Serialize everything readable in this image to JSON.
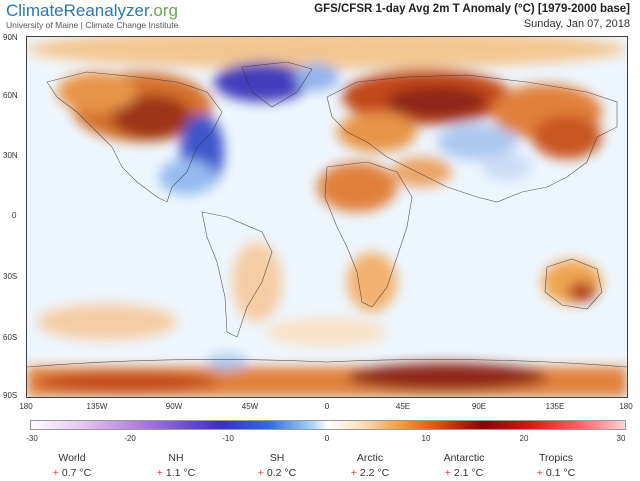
{
  "brand": {
    "name_part1": "ClimateReanalyzer",
    "name_part2": ".org",
    "subtitle": "University of Maine | Climate Change Institute"
  },
  "map": {
    "title": "GFS/CFSR 1-day Avg 2m T Anomaly (°C) [1979-2000 base]",
    "date": "Sunday, Jan 07, 2018",
    "lat_labels": [
      "90N",
      "60N",
      "30N",
      "0",
      "30S",
      "60S",
      "90S"
    ],
    "lon_labels": [
      "180",
      "135W",
      "90W",
      "45W",
      "0",
      "45E",
      "90E",
      "135E",
      "180"
    ]
  },
  "colorbar": {
    "ticks": [
      "-30",
      "-20",
      "-10",
      "0",
      "10",
      "20",
      "30"
    ],
    "colors": {
      "cold_extreme": "#3b2fb8",
      "cold": "#2d6fd6",
      "neutral": "#ffffff",
      "warm": "#f0a048",
      "hot": "#a02508"
    }
  },
  "stats": [
    {
      "name": "World",
      "value": "0.7 °C",
      "sign": "+"
    },
    {
      "name": "NH",
      "value": "1.1 °C",
      "sign": "+"
    },
    {
      "name": "SH",
      "value": "0.2 °C",
      "sign": "+"
    },
    {
      "name": "Arctic",
      "value": "2.2 °C",
      "sign": "+"
    },
    {
      "name": "Antarctic",
      "value": "2.1 °C",
      "sign": "+"
    },
    {
      "name": "Tropics",
      "value": "0.1 °C",
      "sign": "+"
    }
  ]
}
